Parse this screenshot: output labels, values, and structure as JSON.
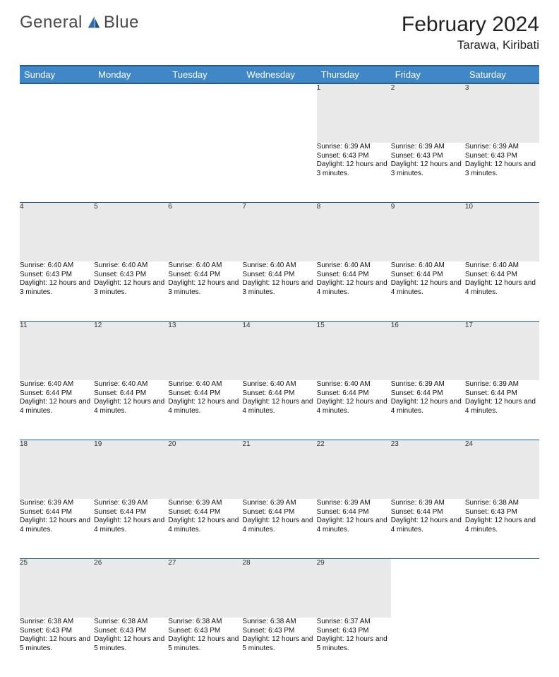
{
  "brand": {
    "part1": "General",
    "part2": "Blue"
  },
  "title": "February 2024",
  "location": "Tarawa, Kiribati",
  "colors": {
    "header_bg": "#3f87c6",
    "header_border": "#2a5a8a",
    "daynum_bg": "#e9e9e9",
    "text": "#111111",
    "logo_gray": "#4a4a4a",
    "logo_blue": "#2f6fb0"
  },
  "typography": {
    "month_title_fontsize": 30,
    "location_fontsize": 17,
    "dayheader_fontsize": 13,
    "cell_fontsize": 10
  },
  "day_headers": [
    "Sunday",
    "Monday",
    "Tuesday",
    "Wednesday",
    "Thursday",
    "Friday",
    "Saturday"
  ],
  "weeks": [
    [
      null,
      null,
      null,
      null,
      {
        "n": "1",
        "sr": "Sunrise: 6:39 AM",
        "ss": "Sunset: 6:43 PM",
        "dl": "Daylight: 12 hours and 3 minutes."
      },
      {
        "n": "2",
        "sr": "Sunrise: 6:39 AM",
        "ss": "Sunset: 6:43 PM",
        "dl": "Daylight: 12 hours and 3 minutes."
      },
      {
        "n": "3",
        "sr": "Sunrise: 6:39 AM",
        "ss": "Sunset: 6:43 PM",
        "dl": "Daylight: 12 hours and 3 minutes."
      }
    ],
    [
      {
        "n": "4",
        "sr": "Sunrise: 6:40 AM",
        "ss": "Sunset: 6:43 PM",
        "dl": "Daylight: 12 hours and 3 minutes."
      },
      {
        "n": "5",
        "sr": "Sunrise: 6:40 AM",
        "ss": "Sunset: 6:43 PM",
        "dl": "Daylight: 12 hours and 3 minutes."
      },
      {
        "n": "6",
        "sr": "Sunrise: 6:40 AM",
        "ss": "Sunset: 6:44 PM",
        "dl": "Daylight: 12 hours and 3 minutes."
      },
      {
        "n": "7",
        "sr": "Sunrise: 6:40 AM",
        "ss": "Sunset: 6:44 PM",
        "dl": "Daylight: 12 hours and 3 minutes."
      },
      {
        "n": "8",
        "sr": "Sunrise: 6:40 AM",
        "ss": "Sunset: 6:44 PM",
        "dl": "Daylight: 12 hours and 4 minutes."
      },
      {
        "n": "9",
        "sr": "Sunrise: 6:40 AM",
        "ss": "Sunset: 6:44 PM",
        "dl": "Daylight: 12 hours and 4 minutes."
      },
      {
        "n": "10",
        "sr": "Sunrise: 6:40 AM",
        "ss": "Sunset: 6:44 PM",
        "dl": "Daylight: 12 hours and 4 minutes."
      }
    ],
    [
      {
        "n": "11",
        "sr": "Sunrise: 6:40 AM",
        "ss": "Sunset: 6:44 PM",
        "dl": "Daylight: 12 hours and 4 minutes."
      },
      {
        "n": "12",
        "sr": "Sunrise: 6:40 AM",
        "ss": "Sunset: 6:44 PM",
        "dl": "Daylight: 12 hours and 4 minutes."
      },
      {
        "n": "13",
        "sr": "Sunrise: 6:40 AM",
        "ss": "Sunset: 6:44 PM",
        "dl": "Daylight: 12 hours and 4 minutes."
      },
      {
        "n": "14",
        "sr": "Sunrise: 6:40 AM",
        "ss": "Sunset: 6:44 PM",
        "dl": "Daylight: 12 hours and 4 minutes."
      },
      {
        "n": "15",
        "sr": "Sunrise: 6:40 AM",
        "ss": "Sunset: 6:44 PM",
        "dl": "Daylight: 12 hours and 4 minutes."
      },
      {
        "n": "16",
        "sr": "Sunrise: 6:39 AM",
        "ss": "Sunset: 6:44 PM",
        "dl": "Daylight: 12 hours and 4 minutes."
      },
      {
        "n": "17",
        "sr": "Sunrise: 6:39 AM",
        "ss": "Sunset: 6:44 PM",
        "dl": "Daylight: 12 hours and 4 minutes."
      }
    ],
    [
      {
        "n": "18",
        "sr": "Sunrise: 6:39 AM",
        "ss": "Sunset: 6:44 PM",
        "dl": "Daylight: 12 hours and 4 minutes."
      },
      {
        "n": "19",
        "sr": "Sunrise: 6:39 AM",
        "ss": "Sunset: 6:44 PM",
        "dl": "Daylight: 12 hours and 4 minutes."
      },
      {
        "n": "20",
        "sr": "Sunrise: 6:39 AM",
        "ss": "Sunset: 6:44 PM",
        "dl": "Daylight: 12 hours and 4 minutes."
      },
      {
        "n": "21",
        "sr": "Sunrise: 6:39 AM",
        "ss": "Sunset: 6:44 PM",
        "dl": "Daylight: 12 hours and 4 minutes."
      },
      {
        "n": "22",
        "sr": "Sunrise: 6:39 AM",
        "ss": "Sunset: 6:44 PM",
        "dl": "Daylight: 12 hours and 4 minutes."
      },
      {
        "n": "23",
        "sr": "Sunrise: 6:39 AM",
        "ss": "Sunset: 6:44 PM",
        "dl": "Daylight: 12 hours and 4 minutes."
      },
      {
        "n": "24",
        "sr": "Sunrise: 6:38 AM",
        "ss": "Sunset: 6:43 PM",
        "dl": "Daylight: 12 hours and 4 minutes."
      }
    ],
    [
      {
        "n": "25",
        "sr": "Sunrise: 6:38 AM",
        "ss": "Sunset: 6:43 PM",
        "dl": "Daylight: 12 hours and 5 minutes."
      },
      {
        "n": "26",
        "sr": "Sunrise: 6:38 AM",
        "ss": "Sunset: 6:43 PM",
        "dl": "Daylight: 12 hours and 5 minutes."
      },
      {
        "n": "27",
        "sr": "Sunrise: 6:38 AM",
        "ss": "Sunset: 6:43 PM",
        "dl": "Daylight: 12 hours and 5 minutes."
      },
      {
        "n": "28",
        "sr": "Sunrise: 6:38 AM",
        "ss": "Sunset: 6:43 PM",
        "dl": "Daylight: 12 hours and 5 minutes."
      },
      {
        "n": "29",
        "sr": "Sunrise: 6:37 AM",
        "ss": "Sunset: 6:43 PM",
        "dl": "Daylight: 12 hours and 5 minutes."
      },
      null,
      null
    ]
  ]
}
